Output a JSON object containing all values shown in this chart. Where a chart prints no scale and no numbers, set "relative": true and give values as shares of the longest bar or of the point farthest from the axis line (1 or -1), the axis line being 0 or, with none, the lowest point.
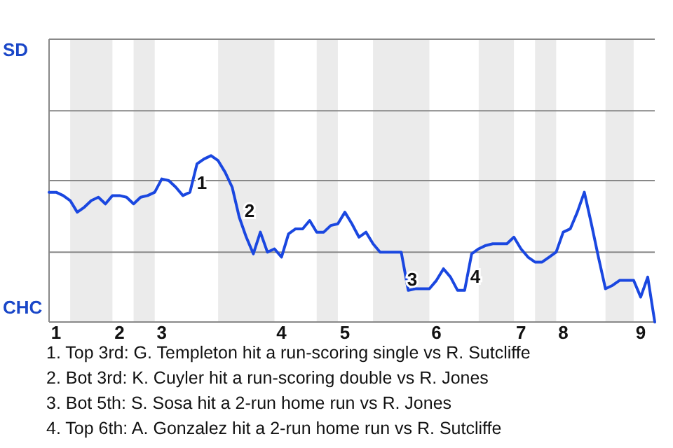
{
  "chart_data": {
    "type": "line",
    "relative": true,
    "categories": [
      null,
      "1",
      null,
      null,
      null,
      null,
      null,
      null,
      null,
      null,
      "2",
      null,
      null,
      null,
      null,
      null,
      "3",
      null,
      null,
      null,
      null,
      null,
      null,
      null,
      null,
      null,
      null,
      null,
      null,
      null,
      null,
      null,
      null,
      "4",
      null,
      null,
      null,
      null,
      null,
      null,
      null,
      null,
      "5",
      null,
      null,
      null,
      null,
      null,
      null,
      null,
      null,
      null,
      null,
      null,
      null,
      "6",
      null,
      null,
      null,
      null,
      null,
      null,
      null,
      null,
      null,
      null,
      null,
      "7",
      null,
      null,
      null,
      null,
      null,
      "8",
      null,
      null,
      null,
      null,
      null,
      null,
      null,
      null,
      null,
      null,
      "9",
      null,
      null
    ],
    "series": [
      {
        "color": "#1a47e0",
        "values": [
          0.78,
          0.78,
          0.76,
          0.73,
          0.66,
          0.69,
          0.73,
          0.75,
          0.71,
          0.76,
          0.76,
          0.75,
          0.71,
          0.75,
          0.76,
          0.78,
          0.86,
          0.85,
          0.81,
          0.76,
          0.78,
          0.95,
          0.98,
          1,
          0.97,
          0.9,
          0.81,
          0.63,
          0.51,
          0.41,
          0.54,
          0.42,
          0.44,
          0.39,
          0.53,
          0.56,
          0.56,
          0.61,
          0.54,
          0.54,
          0.58,
          0.59,
          0.66,
          0.59,
          0.51,
          0.54,
          0.47,
          0.42,
          0.42,
          0.42,
          0.42,
          0.19,
          0.2,
          0.2,
          0.2,
          0.25,
          0.32,
          0.27,
          0.19,
          0.19,
          0.41,
          0.44,
          0.46,
          0.47,
          0.47,
          0.47,
          0.51,
          0.44,
          0.39,
          0.36,
          0.36,
          0.39,
          0.42,
          0.54,
          0.56,
          0.66,
          0.78,
          0.59,
          0.39,
          0.2,
          0.22,
          0.25,
          0.25,
          0.25,
          0.15,
          0.27,
          0
        ]
      }
    ],
    "marker": "none",
    "line_style": "solid",
    "ref_lines": [
      {
        "axis": "y",
        "value": 0.42,
        "color": "#888888"
      },
      {
        "axis": "y",
        "value": 0.85,
        "color": "#888888"
      },
      {
        "axis": "y",
        "value": 1.27,
        "color": "#888888"
      }
    ],
    "annotations": [
      "SD",
      "CHC",
      "1",
      "2",
      "3",
      "4",
      "1. Top 3rd: G. Templeton hit a run-scoring single vs R. Sutcliffe",
      "2. Bot 3rd: K. Cuyler hit a run-scoring double vs R. Jones",
      "3. Bot 5th: S. Sosa hit a 2-run home run vs R. Jones",
      "4. Top 6th: A. Gonzalez hit a 2-run home run vs R. Sutcliffe"
    ]
  }
}
